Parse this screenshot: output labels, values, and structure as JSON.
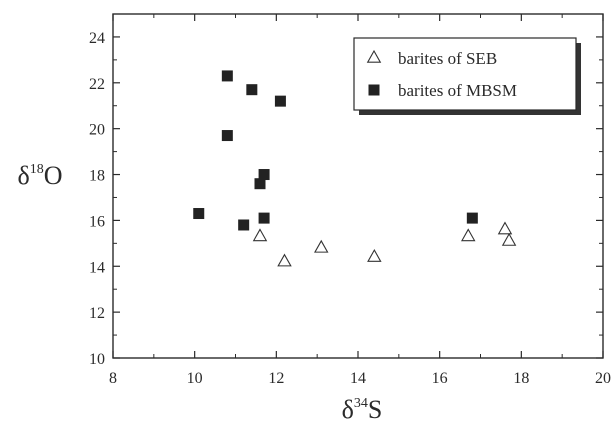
{
  "chart_data": {
    "type": "scatter",
    "title": "",
    "xlabel": {
      "prefix": "δ",
      "sup": "34",
      "suffix": "S"
    },
    "ylabel": {
      "prefix": "δ",
      "sup": "18",
      "suffix": "O"
    },
    "xlim": [
      8,
      20
    ],
    "ylim": [
      10,
      25
    ],
    "xticks": [
      8,
      10,
      12,
      14,
      16,
      18,
      20
    ],
    "yticks": [
      10,
      12,
      14,
      16,
      18,
      20,
      22,
      24
    ],
    "grid": false,
    "legend_position": "top-right",
    "series": [
      {
        "name": "barites of SEB",
        "marker": "open-triangle",
        "color": "#333333",
        "points": [
          {
            "x": 11.6,
            "y": 15.3
          },
          {
            "x": 12.2,
            "y": 14.2
          },
          {
            "x": 13.1,
            "y": 14.8
          },
          {
            "x": 14.4,
            "y": 14.4
          },
          {
            "x": 16.7,
            "y": 15.3
          },
          {
            "x": 17.6,
            "y": 15.6
          },
          {
            "x": 17.7,
            "y": 15.1
          }
        ]
      },
      {
        "name": "barites of MBSM",
        "marker": "filled-square",
        "color": "#222222",
        "points": [
          {
            "x": 10.8,
            "y": 22.3
          },
          {
            "x": 11.4,
            "y": 21.7
          },
          {
            "x": 12.1,
            "y": 21.2
          },
          {
            "x": 10.8,
            "y": 19.7
          },
          {
            "x": 11.7,
            "y": 18.0
          },
          {
            "x": 11.6,
            "y": 17.6
          },
          {
            "x": 10.1,
            "y": 16.3
          },
          {
            "x": 11.7,
            "y": 16.1
          },
          {
            "x": 11.2,
            "y": 15.8
          },
          {
            "x": 16.8,
            "y": 16.1
          }
        ]
      }
    ]
  }
}
